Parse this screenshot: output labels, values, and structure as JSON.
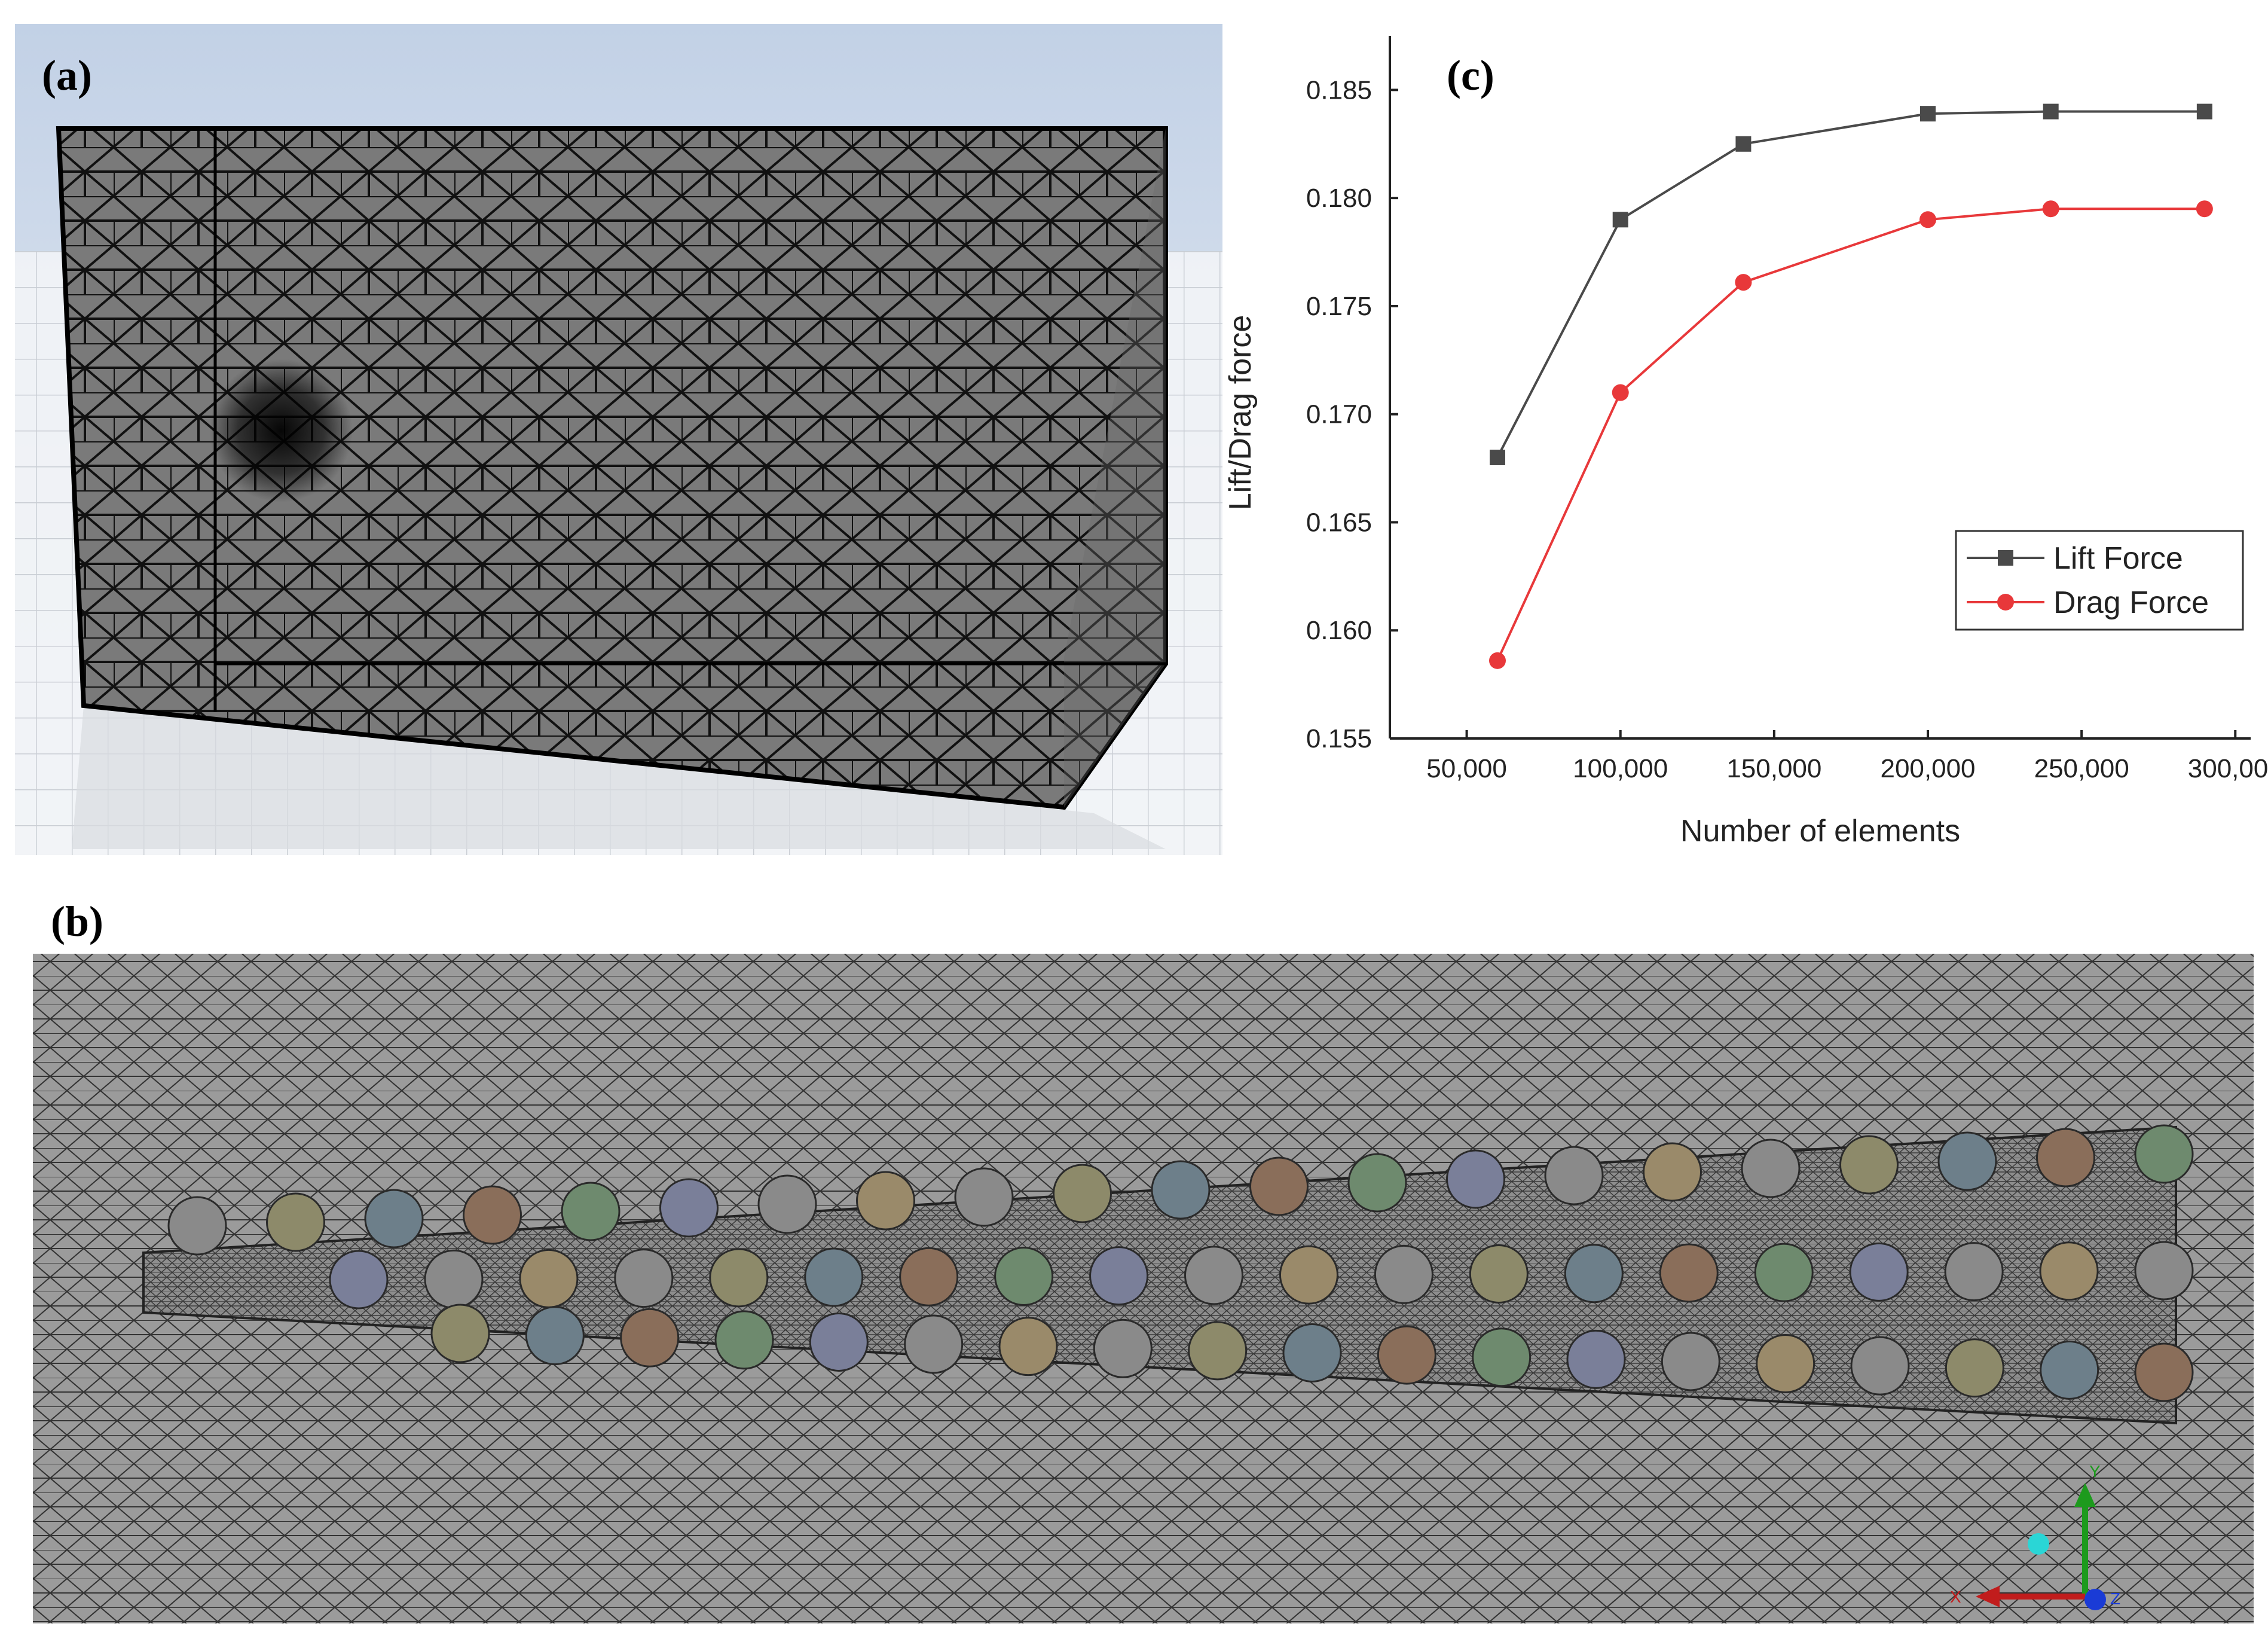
{
  "panels": {
    "a": "(a)",
    "b": "(b)",
    "c": "(c)"
  },
  "colors": {
    "lift": "#4a4a4a",
    "drag": "#e8383a",
    "mesh_fill": "#9b9b9b",
    "mesh_line": "#1a1a1a",
    "box_fill": "#7a7a7a",
    "sky": "#c9d6e8"
  },
  "axis_triad": {
    "x_label": "X",
    "y_label": "Y",
    "z_label": "Z"
  },
  "chart_data": {
    "type": "line",
    "xlabel": "Number of elements",
    "ylabel": "Lift/Drag force",
    "x_ticks": [
      "50,000",
      "100,000",
      "150,000",
      "200,000",
      "250,000",
      "300,000"
    ],
    "x_tick_values": [
      50000,
      100000,
      150000,
      200000,
      250000,
      300000
    ],
    "y_ticks": [
      "0.155",
      "0.160",
      "0.165",
      "0.170",
      "0.175",
      "0.180",
      "0.185"
    ],
    "y_tick_values": [
      0.155,
      0.16,
      0.165,
      0.17,
      0.175,
      0.18,
      0.185
    ],
    "xlim": [
      25000,
      305000
    ],
    "ylim": [
      0.155,
      0.1875
    ],
    "grid": false,
    "legend": "center-right",
    "x": [
      60000,
      100000,
      140000,
      200000,
      240000,
      290000
    ],
    "series": [
      {
        "name": "Lift Force",
        "marker": "square",
        "color": "#4a4a4a",
        "values": [
          0.168,
          0.179,
          0.1825,
          0.1839,
          0.184,
          0.184
        ]
      },
      {
        "name": "Drag Force",
        "marker": "circle",
        "color": "#e8383a",
        "values": [
          0.1586,
          0.171,
          0.1761,
          0.179,
          0.1795,
          0.1795
        ]
      }
    ]
  }
}
